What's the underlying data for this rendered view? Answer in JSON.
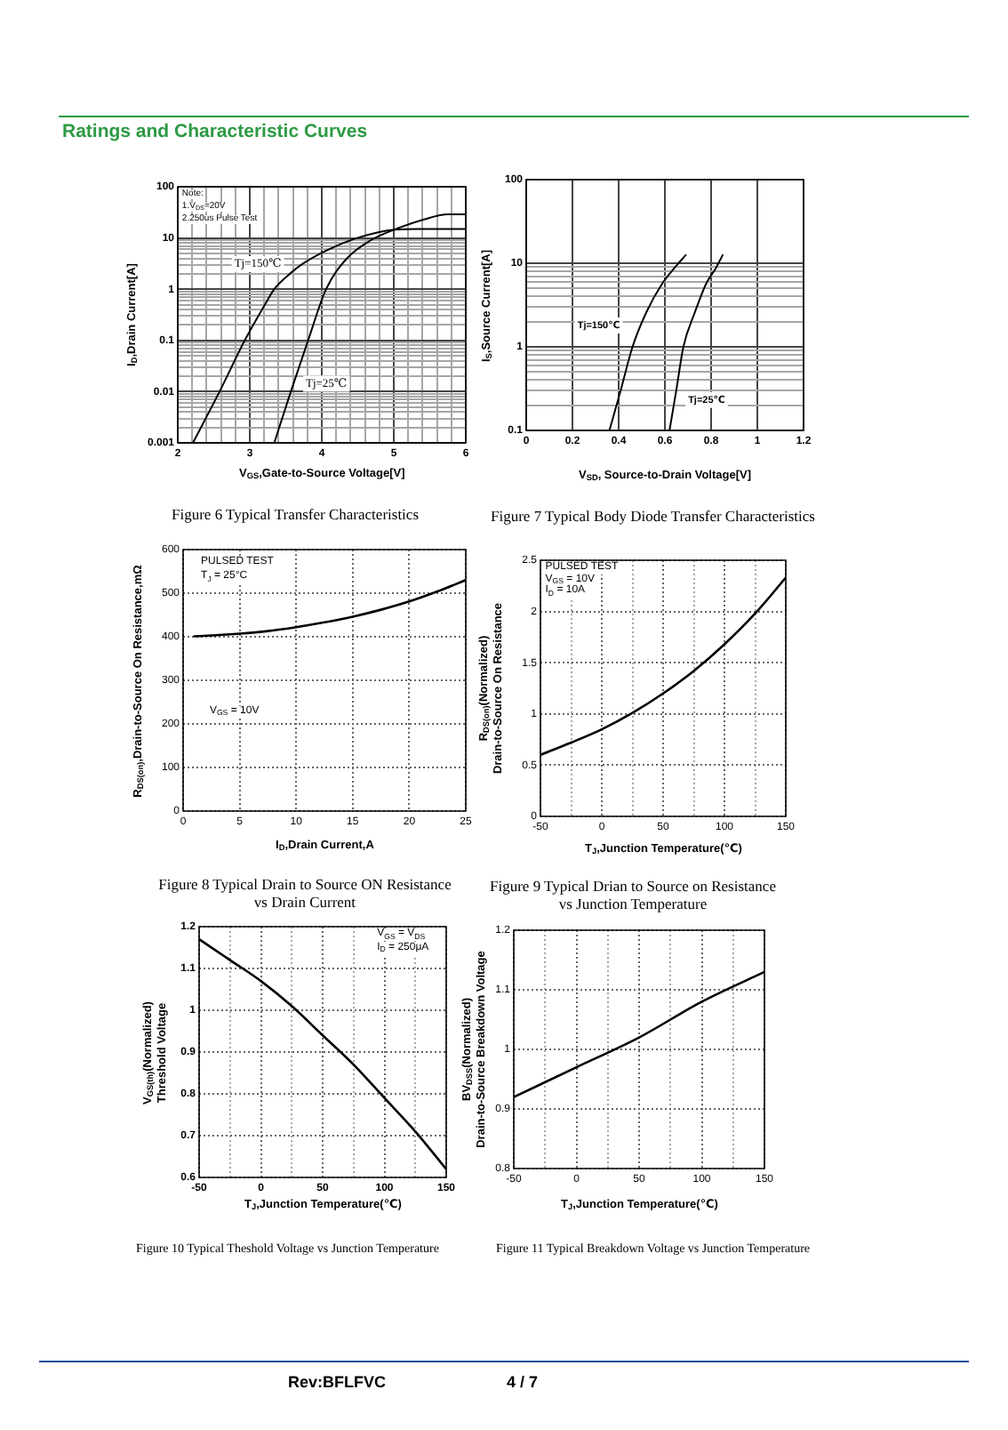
{
  "chart_data": [
    {
      "type": "other",
      "title": "Ratings and Characteristic Curves"
    },
    {
      "type": "line",
      "title": "Figure 6 Typical Transfer Characteristics",
      "xlabel": "V$_{GS}$,Gate-to-Source Voltage[V]",
      "ylabel": "I$_{D}$,Drain Current[A]",
      "log": "y",
      "grid": true,
      "xlim": [
        2,
        6
      ],
      "ylim": [
        0.001,
        100
      ],
      "xticks": [
        2,
        {
          "value": 2.2,
          "label": null
        },
        {
          "value": 2.4,
          "label": null
        },
        {
          "value": 2.6,
          "label": null
        },
        {
          "value": 2.8,
          "label": null
        },
        3,
        {
          "value": 3.2,
          "label": null
        },
        {
          "value": 3.4,
          "label": null
        },
        {
          "value": 3.6,
          "label": null
        },
        {
          "value": 3.8,
          "label": null
        },
        4,
        {
          "value": 4.2,
          "label": null
        },
        {
          "value": 4.4,
          "label": null
        },
        {
          "value": 4.6,
          "label": null
        },
        {
          "value": 4.8,
          "label": null
        },
        5,
        {
          "value": 5.2,
          "label": null
        },
        {
          "value": 5.4,
          "label": null
        },
        {
          "value": 5.6,
          "label": null
        },
        {
          "value": 5.8,
          "label": null
        },
        6
      ],
      "yticks": [
        0.001,
        {
          "value": 0.002,
          "label": null
        },
        {
          "value": 0.003,
          "label": null
        },
        {
          "value": 0.004,
          "label": null
        },
        {
          "value": 0.005,
          "label": null
        },
        {
          "value": 0.006,
          "label": null
        },
        {
          "value": 0.007,
          "label": null
        },
        {
          "value": 0.008,
          "label": null
        },
        {
          "value": 0.009,
          "label": null
        },
        0.01,
        {
          "value": 0.02,
          "label": null
        },
        {
          "value": 0.03,
          "label": null
        },
        {
          "value": 0.04,
          "label": null
        },
        {
          "value": 0.05,
          "label": null
        },
        {
          "value": 0.06,
          "label": null
        },
        {
          "value": 0.07,
          "label": null
        },
        {
          "value": 0.08,
          "label": null
        },
        {
          "value": 0.09,
          "label": null
        },
        0.1,
        {
          "value": 0.2,
          "label": null
        },
        {
          "value": 0.3,
          "label": null
        },
        {
          "value": 0.4,
          "label": null
        },
        {
          "value": 0.5,
          "label": null
        },
        {
          "value": 0.6,
          "label": null
        },
        {
          "value": 0.7,
          "label": null
        },
        {
          "value": 0.8,
          "label": null
        },
        {
          "value": 0.9,
          "label": null
        },
        1,
        {
          "value": 2,
          "label": null
        },
        {
          "value": 3,
          "label": null
        },
        {
          "value": 4,
          "label": null
        },
        {
          "value": 5,
          "label": null
        },
        {
          "value": 6,
          "label": null
        },
        {
          "value": 7,
          "label": null
        },
        {
          "value": 8,
          "label": null
        },
        {
          "value": 9,
          "label": null
        },
        10,
        100
      ],
      "annotations": [
        "Note:",
        "1.V$_{DS}$=20V",
        "2.250us Pulse Test"
      ],
      "series": [
        {
          "name": "Tj=150℃",
          "color": "#000000",
          "x": [
            2.21,
            2.58,
            2.93,
            3.2,
            3.34,
            3.52,
            3.73,
            4.1,
            4.52,
            5.01,
            5.34,
            6
          ],
          "values": [
            0.001,
            0.01,
            0.1,
            0.47,
            1,
            1.8,
            3.1,
            6,
            10.3,
            14.6,
            15,
            15
          ]
        },
        {
          "name": "Tj=25℃",
          "color": "#000000",
          "x": [
            3.34,
            3.57,
            3.81,
            4.06,
            4.35,
            4.68,
            5.01,
            5.42,
            5.75,
            6
          ],
          "values": [
            0.001,
            0.01,
            0.1,
            1,
            4,
            9,
            14.6,
            23,
            29,
            29
          ]
        }
      ]
    },
    {
      "type": "line",
      "title": "Figure 7 Typical Body Diode Transfer Characteristics",
      "xlabel": "V$_{SD}$, Source-to-Drain Voltage[V]",
      "ylabel": "I$_{S}$,Source Current[A]",
      "log": "y",
      "grid": true,
      "xlim": [
        0,
        1.2
      ],
      "ylim": [
        0.1,
        100
      ],
      "xticks": [
        0,
        0.2,
        0.4,
        0.6,
        0.8,
        1,
        1.2
      ],
      "yticks": [
        0.1,
        {
          "value": 0.2,
          "label": null
        },
        {
          "value": 0.3,
          "label": null
        },
        {
          "value": 0.4,
          "label": null
        },
        {
          "value": 0.5,
          "label": null
        },
        {
          "value": 0.6,
          "label": null
        },
        {
          "value": 0.7,
          "label": null
        },
        {
          "value": 0.8,
          "label": null
        },
        {
          "value": 0.9,
          "label": null
        },
        1,
        {
          "value": 2,
          "label": null
        },
        {
          "value": 3,
          "label": null
        },
        {
          "value": 4,
          "label": null
        },
        {
          "value": 5,
          "label": null
        },
        {
          "value": 6,
          "label": null
        },
        {
          "value": 7,
          "label": null
        },
        {
          "value": 8,
          "label": null
        },
        {
          "value": 9,
          "label": null
        },
        10,
        100
      ],
      "series": [
        {
          "name": "Tj=150℃",
          "color": "#000000",
          "x": [
            0.36,
            0.41,
            0.46,
            0.52,
            0.59,
            0.64,
            0.69
          ],
          "values": [
            0.1,
            0.31,
            1,
            2.6,
            5.8,
            8.7,
            12.5
          ]
        },
        {
          "name": "Tj=25℃",
          "color": "#000000",
          "x": [
            0.62,
            0.65,
            0.68,
            0.73,
            0.78,
            0.82,
            0.85
          ],
          "values": [
            0.1,
            0.31,
            1,
            2.6,
            5.8,
            8.7,
            12.5
          ]
        }
      ]
    },
    {
      "type": "line",
      "title": "Figure 8 Typical Drain to Source ON Resistance vs Drain Current",
      "xlabel": "I$_{D}$,Drain Current,A",
      "ylabel": "R$_{DS(on)}$,Drain-to-Source On Resistance,mΩ",
      "grid": true,
      "xlim": [
        0,
        25
      ],
      "ylim": [
        0,
        600
      ],
      "xticks": [
        0,
        5,
        10,
        15,
        20,
        25
      ],
      "yticks": [
        0,
        100,
        200,
        300,
        400,
        500,
        600
      ],
      "annotations": [
        "PULSED TEST",
        "T$_{J}$ = 25°C",
        "V$_{GS}$ = 10V"
      ],
      "x": [
        1,
        2.5,
        5,
        7.5,
        10,
        12.5,
        15,
        17.5,
        20,
        22.5,
        25
      ],
      "series": [
        {
          "color": "#000000",
          "values": [
            401,
            403,
            407,
            413,
            422,
            433,
            446,
            462,
            481,
            504,
            530
          ]
        }
      ]
    },
    {
      "type": "line",
      "title": "Figure 9 Typical Drian to Source on Resistance vs Junction Temperature",
      "xlabel": "T$_{J}$,Junction Temperature(℃)",
      "ylabel": "R$_{DS(on)}$(Normalized)\nDrain-to-Source On Resistance",
      "grid": true,
      "xlim": [
        -50,
        150
      ],
      "ylim": [
        0,
        2.5
      ],
      "xticks": [
        -50,
        {
          "value": -25,
          "label": null
        },
        0,
        {
          "value": 25,
          "label": null
        },
        50,
        {
          "value": 75,
          "label": null
        },
        100,
        {
          "value": 125,
          "label": null
        },
        150
      ],
      "yticks": [
        0,
        0.5,
        1,
        1.5,
        2,
        2.5
      ],
      "annotations": [
        "PULSED TEST",
        "V$_{GS}$ = 10V",
        "I$_{D}$ = 10A"
      ],
      "x": [
        -50,
        -25,
        0,
        25,
        50,
        75,
        100,
        125,
        150
      ],
      "series": [
        {
          "color": "#000000",
          "values": [
            0.6,
            0.72,
            0.85,
            1.01,
            1.2,
            1.42,
            1.68,
            1.98,
            2.33
          ]
        }
      ]
    },
    {
      "type": "line",
      "title": "Figure 10 Typical Theshold Voltage vs Junction Temperature",
      "xlabel": "T$_{J}$,Junction Temperature(℃)",
      "ylabel": "V$_{GS(th)}$(Normalized)\nThreshold Voltage",
      "grid": true,
      "xlim": [
        -50,
        150
      ],
      "ylim": [
        0.6,
        1.2
      ],
      "xticks": [
        -50,
        {
          "value": -25,
          "label": null
        },
        0,
        {
          "value": 25,
          "label": null
        },
        50,
        {
          "value": 75,
          "label": null
        },
        100,
        {
          "value": 125,
          "label": null
        },
        150
      ],
      "yticks": [
        0.6,
        0.7,
        0.8,
        0.9,
        1,
        1.1,
        1.2
      ],
      "annotations": [
        "V$_{GS}$ = V$_{DS}$",
        "I$_{D}$ = 250μA"
      ],
      "x": [
        -50,
        -25,
        0,
        25,
        50,
        75,
        100,
        125,
        150
      ],
      "series": [
        {
          "color": "#000000",
          "values": [
            1.17,
            1.12,
            1.07,
            1.01,
            0.94,
            0.87,
            0.79,
            0.71,
            0.62
          ]
        }
      ]
    },
    {
      "type": "line",
      "title": "Figure 11 Typical Breakdown Voltage vs Junction Temperature",
      "xlabel": "T$_{J}$,Junction Temperature(℃)",
      "ylabel": "BV$_{DSS}$(Normalized)\nDrain-to-Source Breakdown Voltage",
      "grid": true,
      "xlim": [
        -50,
        150
      ],
      "ylim": [
        0.8,
        1.2
      ],
      "xticks": [
        -50,
        {
          "value": -25,
          "label": null
        },
        0,
        {
          "value": 25,
          "label": null
        },
        50,
        {
          "value": 75,
          "label": null
        },
        100,
        {
          "value": 125,
          "label": null
        },
        150
      ],
      "yticks": [
        0.8,
        0.9,
        1,
        1.1,
        1.2
      ],
      "x": [
        -50,
        0,
        50,
        100,
        150
      ],
      "series": [
        {
          "color": "#000000",
          "values": [
            0.92,
            0.97,
            1.02,
            1.08,
            1.13
          ]
        }
      ]
    },
    {
      "type": "other",
      "annotations": [
        "Rev:BFLFVC",
        "4 / 7"
      ]
    }
  ]
}
